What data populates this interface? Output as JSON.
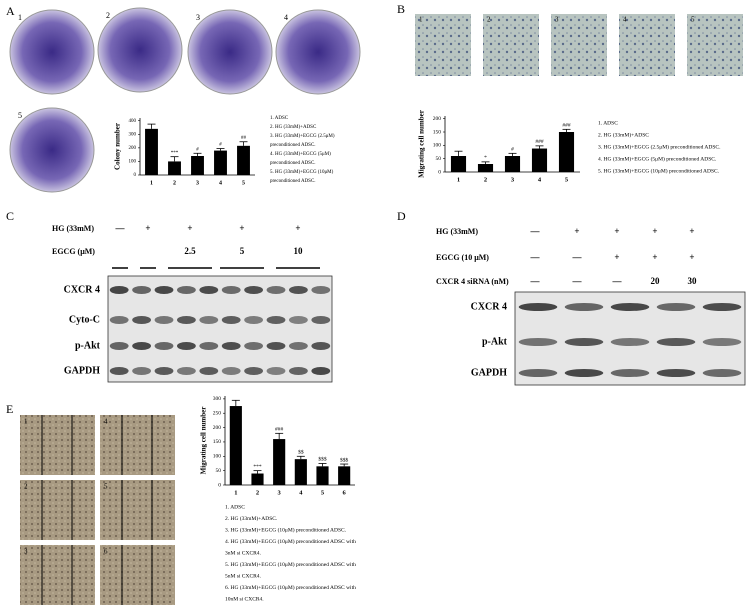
{
  "panels": {
    "a": "A",
    "b": "B",
    "c": "C",
    "d": "D",
    "e": "E"
  },
  "dishes_a": [
    "1",
    "2",
    "3",
    "4",
    "5"
  ],
  "fields_b": [
    "1",
    "2",
    "3",
    "4",
    "5"
  ],
  "fields_e": [
    "1",
    "4",
    "2",
    "5",
    "3",
    "6"
  ],
  "chart_data": [
    {
      "type": "bar",
      "ylabel": "Colony number",
      "categories": [
        "1",
        "2",
        "3",
        "4",
        "5"
      ],
      "values": [
        340,
        100,
        140,
        180,
        215
      ],
      "errors": [
        35,
        35,
        20,
        15,
        30
      ],
      "annotations": [
        null,
        "***",
        "#",
        "#",
        "##"
      ],
      "color": "#000000",
      "ylim": [
        0,
        420
      ],
      "yticks": [
        0,
        100,
        200,
        300,
        400
      ],
      "legend": [
        "1. ADSC",
        "2. HG (33mM)+ADSC",
        "3. HG (33mM)+EGCG (2.5μM)",
        "preconditioned ADSC.",
        "4. HG (33mM)+EGCG (5μM)",
        "preconditioned ADSC.",
        "5. HG (33mM)+EGCG (10μM)",
        "preconditioned ADSC."
      ]
    },
    {
      "type": "bar",
      "ylabel": "Migrating cell number",
      "categories": [
        "1",
        "2",
        "3",
        "4",
        "5"
      ],
      "values": [
        60,
        30,
        60,
        88,
        150
      ],
      "errors": [
        18,
        8,
        10,
        10,
        10
      ],
      "annotations": [
        null,
        "*",
        "#",
        "###",
        "###"
      ],
      "color": "#000000",
      "ylim": [
        0,
        210
      ],
      "yticks": [
        0,
        50,
        100,
        150,
        200
      ],
      "legend": [
        "1. ADSC",
        "2. HG (33mM)+ADSC",
        "3. HG (33mM)+EGCG (2.5μM)  preconditioned ADSC.",
        "4. HG (33mM)+EGCG (5μM) preconditioned ADSC.",
        "5. HG (33mM)+EGCG (10μM) preconditioned ADSC."
      ]
    },
    {
      "type": "bar",
      "ylabel": "Migrating cell number",
      "categories": [
        "1",
        "2",
        "3",
        "4",
        "5",
        "6"
      ],
      "values": [
        275,
        40,
        160,
        90,
        65,
        65
      ],
      "errors": [
        20,
        10,
        20,
        10,
        10,
        8
      ],
      "annotations": [
        null,
        "***",
        "###",
        "$$",
        "$$$",
        "$$$"
      ],
      "color": "#000000",
      "ylim": [
        0,
        310
      ],
      "yticks": [
        0,
        50,
        100,
        150,
        200,
        250,
        300
      ],
      "legend": [
        "1. ADSC",
        "2. HG (33mM)+ADSC.",
        "3. HG (33mM)+EGCG (10μM) preconditioned ADSC.",
        "4. HG (33mM)+EGCG (10μM) preconditioned ADSC with",
        "3nM si CXCR4.",
        "5. HG (33mM)+EGCG (10μM) preconditioned ADSC with",
        "5nM si CXCR4.",
        "6. HG (33mM)+EGCG (10μM) preconditioned ADSC with",
        "10nM si CXCR4."
      ]
    }
  ],
  "blot_c": {
    "treatments": [
      {
        "label": "HG (33mM)",
        "marks": [
          "—",
          "+",
          "+",
          "+",
          "+"
        ]
      },
      {
        "label": "EGCG (μM)",
        "marks": [
          null,
          null,
          "2.5",
          "5",
          "10"
        ]
      }
    ],
    "proteins": [
      "CXCR 4",
      "Cyto-C",
      "p-Akt",
      "GAPDH"
    ]
  },
  "blot_d": {
    "treatments": [
      {
        "label": "HG (33mM)",
        "marks": [
          "—",
          "+",
          "+",
          "+",
          "+"
        ]
      },
      {
        "label": "EGCG (10 μM)",
        "marks": [
          "—",
          "—",
          "+",
          "+",
          "+"
        ]
      },
      {
        "label": "CXCR 4 siRNA (nM)",
        "marks": [
          "—",
          "—",
          "—",
          "20",
          "30"
        ]
      }
    ],
    "proteins": [
      "CXCR 4",
      "p-Akt",
      "GAPDH"
    ]
  }
}
